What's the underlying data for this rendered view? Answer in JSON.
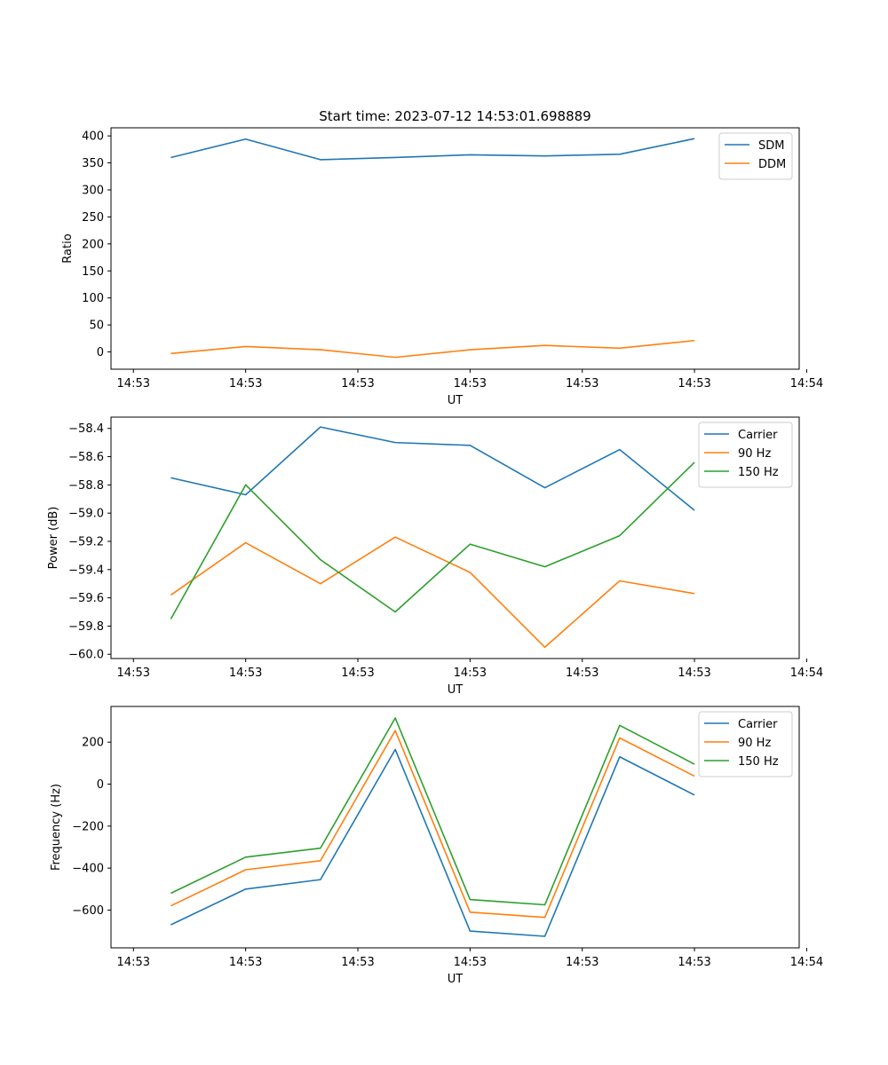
{
  "figure_title": "Start time: 2023-07-12 14:53:01.698889",
  "colors": {
    "c0": "#1f77b4",
    "c1": "#ff7f0e",
    "c2": "#2ca02c"
  },
  "chart_data": [
    {
      "type": "line",
      "title": "Start time: 2023-07-12 14:53:01.698889",
      "xlabel": "UT",
      "ylabel": "Ratio",
      "x": [
        1,
        2,
        3,
        4,
        5,
        6,
        7,
        8
      ],
      "xlim": [
        0.2,
        9.4
      ],
      "xticks": [
        0.5,
        2.0,
        3.5,
        5.0,
        6.5,
        8.0,
        9.5
      ],
      "xtick_labels": [
        "14:53",
        "14:53",
        "14:53",
        "14:53",
        "14:53",
        "14:53",
        "14:54"
      ],
      "ylim": [
        -32,
        415
      ],
      "yticks": [
        0,
        50,
        100,
        150,
        200,
        250,
        300,
        350,
        400
      ],
      "ytick_labels": [
        "0",
        "50",
        "100",
        "150",
        "200",
        "250",
        "300",
        "350",
        "400"
      ],
      "legend_position": "top-right",
      "series": [
        {
          "name": "SDM",
          "color": "#1f77b4",
          "values": [
            360,
            394,
            356,
            360,
            365,
            363,
            366,
            395
          ]
        },
        {
          "name": "DDM",
          "color": "#ff7f0e",
          "values": [
            -3,
            10,
            4,
            -10,
            4,
            12,
            7,
            21
          ]
        }
      ]
    },
    {
      "type": "line",
      "title": "",
      "xlabel": "UT",
      "ylabel": "Power (dB)",
      "x": [
        1,
        2,
        3,
        4,
        5,
        6,
        7,
        8
      ],
      "xlim": [
        0.2,
        9.4
      ],
      "xticks": [
        0.5,
        2.0,
        3.5,
        5.0,
        6.5,
        8.0,
        9.5
      ],
      "xtick_labels": [
        "14:53",
        "14:53",
        "14:53",
        "14:53",
        "14:53",
        "14:53",
        "14:54"
      ],
      "ylim": [
        -60.03,
        -58.32
      ],
      "yticks": [
        -60.0,
        -59.8,
        -59.6,
        -59.4,
        -59.2,
        -59.0,
        -58.8,
        -58.6,
        -58.4
      ],
      "ytick_labels": [
        "−60.0",
        "−59.8",
        "−59.6",
        "−59.4",
        "−59.2",
        "−59.0",
        "−58.8",
        "−58.6",
        "−58.4"
      ],
      "legend_position": "top-right",
      "series": [
        {
          "name": "Carrier",
          "color": "#1f77b4",
          "values": [
            -58.75,
            -58.87,
            -58.39,
            -58.5,
            -58.52,
            -58.82,
            -58.55,
            -58.98
          ]
        },
        {
          "name": "90 Hz",
          "color": "#ff7f0e",
          "values": [
            -59.58,
            -59.21,
            -59.5,
            -59.17,
            -59.42,
            -59.95,
            -59.48,
            -59.57
          ]
        },
        {
          "name": "150 Hz",
          "color": "#2ca02c",
          "values": [
            -59.75,
            -58.8,
            -59.33,
            -59.7,
            -59.22,
            -59.38,
            -59.16,
            -58.64
          ]
        }
      ]
    },
    {
      "type": "line",
      "title": "",
      "xlabel": "UT",
      "ylabel": "Frequency (Hz)",
      "x": [
        1,
        2,
        3,
        4,
        5,
        6,
        7,
        8
      ],
      "xlim": [
        0.2,
        9.4
      ],
      "xticks": [
        0.5,
        2.0,
        3.5,
        5.0,
        6.5,
        8.0,
        9.5
      ],
      "xtick_labels": [
        "14:53",
        "14:53",
        "14:53",
        "14:53",
        "14:53",
        "14:53",
        "14:54"
      ],
      "ylim": [
        -780,
        370
      ],
      "yticks": [
        -600,
        -400,
        -200,
        0,
        200
      ],
      "ytick_labels": [
        "−600",
        "−400",
        "−200",
        "0",
        "200"
      ],
      "legend_position": "top-right",
      "series": [
        {
          "name": "Carrier",
          "color": "#1f77b4",
          "values": [
            -670,
            -500,
            -455,
            165,
            -700,
            -725,
            130,
            -52
          ]
        },
        {
          "name": "90 Hz",
          "color": "#ff7f0e",
          "values": [
            -580,
            -408,
            -365,
            255,
            -610,
            -635,
            220,
            38
          ]
        },
        {
          "name": "150 Hz",
          "color": "#2ca02c",
          "values": [
            -520,
            -348,
            -305,
            315,
            -550,
            -575,
            280,
            95
          ]
        }
      ]
    }
  ]
}
